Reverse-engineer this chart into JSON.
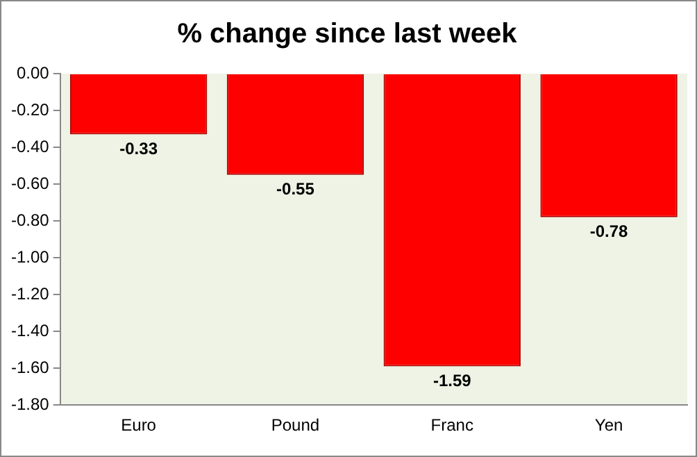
{
  "chart_data": {
    "type": "bar",
    "title": "% change since last week",
    "categories": [
      "Euro",
      "Pound",
      "Franc",
      "Yen"
    ],
    "values": [
      -0.33,
      -0.55,
      -1.59,
      -0.78
    ],
    "color": "#ff0000",
    "ylim": [
      -1.8,
      0
    ],
    "yticks": [
      {
        "value": 0,
        "label": "0.00"
      },
      {
        "value": -0.2,
        "label": "-0.20"
      },
      {
        "value": -0.4,
        "label": "-0.40"
      },
      {
        "value": -0.6,
        "label": "-0.60"
      },
      {
        "value": -0.8,
        "label": "-0.80"
      },
      {
        "value": -1,
        "label": "-1.00"
      },
      {
        "value": -1.2,
        "label": "-1.20"
      },
      {
        "value": -1.4,
        "label": "-1.40"
      },
      {
        "value": -1.6,
        "label": "-1.60"
      },
      {
        "value": -1.8,
        "label": "-1.80"
      }
    ],
    "grid": false,
    "legend": false,
    "data_labels": true
  }
}
